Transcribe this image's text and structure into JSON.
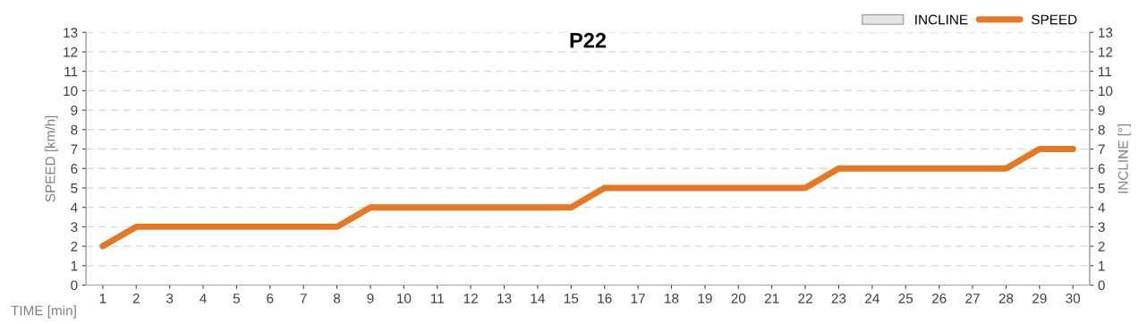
{
  "chart_data": {
    "type": "line",
    "title": "P22",
    "xlabel": "TIME [min]",
    "ylabel": "SPEED [km/h]",
    "y2label": "INCLINE [°]",
    "categories": [
      "1",
      "2",
      "3",
      "4",
      "5",
      "6",
      "7",
      "8",
      "9",
      "10",
      "11",
      "12",
      "13",
      "14",
      "15",
      "16",
      "17",
      "18",
      "19",
      "20",
      "21",
      "22",
      "23",
      "24",
      "25",
      "26",
      "27",
      "28",
      "29",
      "30"
    ],
    "series": [
      {
        "name": "INCLINE",
        "type": "bar",
        "color": "#e7e6e6",
        "values": [
          0,
          0,
          0,
          0,
          0,
          0,
          0,
          0,
          0,
          0,
          0,
          0,
          0,
          0,
          0,
          0,
          0,
          0,
          0,
          0,
          0,
          0,
          0,
          0,
          0,
          0,
          0,
          0,
          0,
          0
        ]
      },
      {
        "name": "SPEED",
        "color": "#e87722",
        "values": [
          2,
          3,
          3,
          3,
          3,
          3,
          3,
          3,
          4,
          4,
          4,
          4,
          4,
          4,
          4,
          5,
          5,
          5,
          5,
          5,
          5,
          5,
          6,
          6,
          6,
          6,
          6,
          6,
          7,
          7
        ]
      }
    ],
    "ylim": [
      0,
      13
    ],
    "yticks": [
      0,
      1,
      2,
      3,
      4,
      5,
      6,
      7,
      8,
      9,
      10,
      11,
      12,
      13
    ],
    "y2lim": [
      0,
      13
    ],
    "y2ticks": [
      0,
      1,
      2,
      3,
      4,
      5,
      6,
      7,
      8,
      9,
      10,
      11,
      12,
      13
    ],
    "grid": "y",
    "legend": "top right",
    "line_style": "solid",
    "marker": "none"
  }
}
